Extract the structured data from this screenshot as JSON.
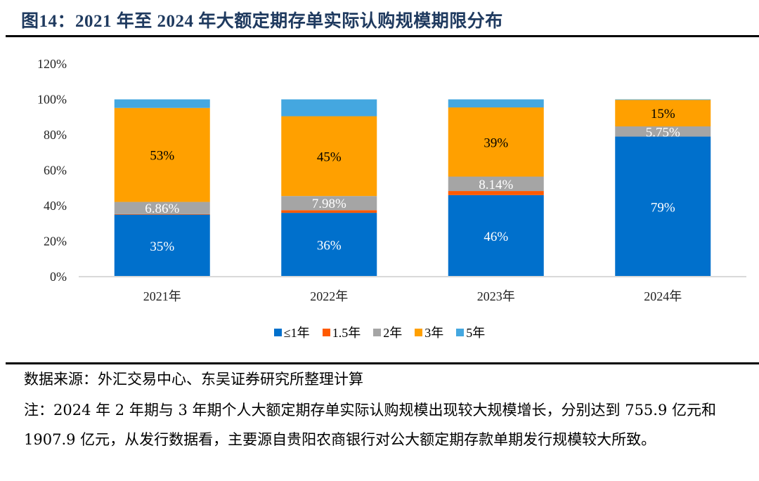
{
  "header": {
    "title": "图14：2021 年至 2024 年大额定期存单实际认购规模期限分布"
  },
  "chart_data": {
    "type": "bar",
    "stacked": true,
    "title": "图14：2021 年至 2024 年大额定期存单实际认购规模期限分布",
    "xlabel": "",
    "ylabel": "",
    "categories": [
      "2021年",
      "2022年",
      "2023年",
      "2024年"
    ],
    "yticks": [
      "0%",
      "20%",
      "40%",
      "60%",
      "80%",
      "100%",
      "120%"
    ],
    "ylim": [
      0,
      120
    ],
    "grid": false,
    "legend_position": "bottom",
    "series": [
      {
        "name": "≤1年",
        "color": "#0070cc",
        "values": [
          35,
          36,
          46,
          79
        ],
        "labels": [
          "35%",
          "36%",
          "46%",
          "79%"
        ],
        "label_color": "#ffffff"
      },
      {
        "name": "1.5年",
        "color": "#ff5a00",
        "values": [
          0.3,
          1.5,
          2.3,
          0
        ],
        "labels": [
          "",
          "",
          "",
          ""
        ],
        "label_color": "#ffffff"
      },
      {
        "name": "2年",
        "color": "#a5a5a5",
        "values": [
          6.86,
          7.98,
          8.14,
          5.75
        ],
        "labels": [
          "6.86%",
          "7.98%",
          "8.14%",
          "5.75%"
        ],
        "label_color": "#ffffff"
      },
      {
        "name": "3年",
        "color": "#ffa000",
        "values": [
          53,
          45,
          39,
          15
        ],
        "labels": [
          "53%",
          "45%",
          "39%",
          "15%"
        ],
        "label_color": "#000000"
      },
      {
        "name": "5年",
        "color": "#44a7e0",
        "values": [
          4.84,
          9.52,
          4.56,
          0.25
        ],
        "labels": [
          "",
          "",
          "",
          ""
        ],
        "label_color": "#ffffff"
      }
    ]
  },
  "footer": {
    "source": "数据来源：外汇交易中心、东吴证券研究所整理计算",
    "note": "注：2024 年 2 年期与 3 年期个人大额定期存单实际认购规模出现较大规模增长，分别达到 755.9 亿元和 1907.9 亿元，从发行数据看，主要源自贵阳农商银行对公大额定期存款单期发行规模较大所致。"
  }
}
